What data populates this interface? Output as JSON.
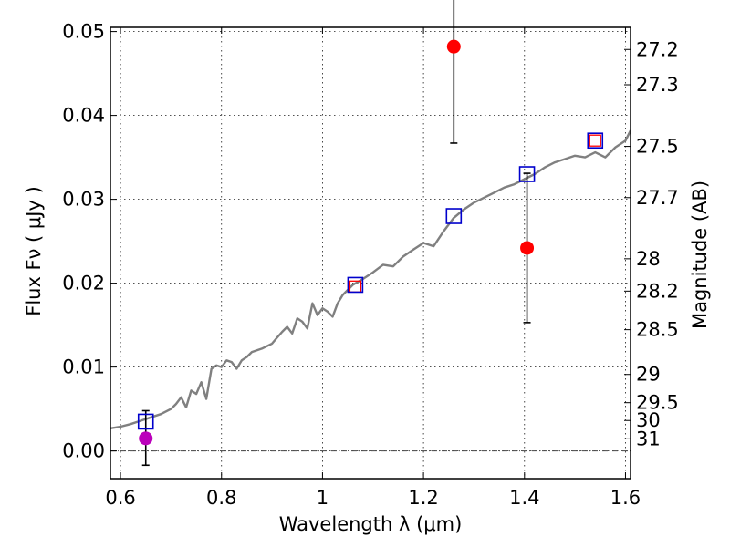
{
  "chart_data": {
    "type": "scatter",
    "xlabel": "Wavelength  λ (μm)",
    "ylabel": "Flux  Fν  ( μJy )",
    "ylabel_right": "Magnitude (AB)",
    "xlim": [
      0.58,
      1.61
    ],
    "ylim": [
      -0.0033,
      0.0505
    ],
    "grid": true,
    "x_ticks": [
      0.6,
      0.8,
      1.0,
      1.2,
      1.4,
      1.6
    ],
    "x_tick_labels": [
      "0.6",
      "0.8",
      "1",
      "1.2",
      "1.4",
      "1.6"
    ],
    "y_ticks": [
      0.0,
      0.01,
      0.02,
      0.03,
      0.04,
      0.05
    ],
    "y_tick_labels": [
      "0.00",
      "0.01",
      "0.02",
      "0.03",
      "0.04",
      "0.05"
    ],
    "right_ticks": [
      {
        "mag": 27.2,
        "label": "27.2"
      },
      {
        "mag": 27.3,
        "label": "27.3"
      },
      {
        "mag": 27.5,
        "label": "27.5"
      },
      {
        "mag": 27.7,
        "label": "27.7"
      },
      {
        "mag": 28,
        "label": "28"
      },
      {
        "mag": 28.2,
        "label": "28.2"
      },
      {
        "mag": 28.5,
        "label": "28.5"
      },
      {
        "mag": 29,
        "label": "29"
      },
      {
        "mag": 29.5,
        "label": "29.5"
      },
      {
        "mag": 30,
        "label": "30"
      },
      {
        "mag": 31,
        "label": "31"
      }
    ],
    "spectrum": {
      "color": "#808080",
      "x": [
        0.58,
        0.6,
        0.62,
        0.64,
        0.66,
        0.68,
        0.7,
        0.71,
        0.72,
        0.73,
        0.74,
        0.75,
        0.76,
        0.77,
        0.78,
        0.79,
        0.8,
        0.81,
        0.82,
        0.83,
        0.84,
        0.85,
        0.86,
        0.88,
        0.9,
        0.91,
        0.92,
        0.93,
        0.94,
        0.95,
        0.96,
        0.97,
        0.98,
        0.99,
        1.0,
        1.01,
        1.02,
        1.03,
        1.04,
        1.05,
        1.06,
        1.08,
        1.1,
        1.12,
        1.14,
        1.16,
        1.18,
        1.2,
        1.22,
        1.24,
        1.26,
        1.28,
        1.3,
        1.32,
        1.34,
        1.36,
        1.38,
        1.4,
        1.42,
        1.44,
        1.46,
        1.48,
        1.5,
        1.52,
        1.54,
        1.56,
        1.58,
        1.6,
        1.61
      ],
      "y": [
        0.0027,
        0.0029,
        0.0032,
        0.0036,
        0.004,
        0.0044,
        0.005,
        0.0056,
        0.0064,
        0.0052,
        0.0072,
        0.0068,
        0.0082,
        0.0062,
        0.0098,
        0.0102,
        0.01,
        0.0108,
        0.0106,
        0.0098,
        0.0108,
        0.0112,
        0.0118,
        0.0122,
        0.0128,
        0.0135,
        0.0142,
        0.0148,
        0.014,
        0.0158,
        0.0154,
        0.0146,
        0.0176,
        0.0162,
        0.017,
        0.0166,
        0.016,
        0.0176,
        0.0186,
        0.0192,
        0.0198,
        0.0205,
        0.0213,
        0.0222,
        0.022,
        0.0232,
        0.024,
        0.0248,
        0.0244,
        0.0262,
        0.0278,
        0.0288,
        0.0296,
        0.0302,
        0.0308,
        0.0314,
        0.0318,
        0.0324,
        0.033,
        0.0338,
        0.0344,
        0.0348,
        0.0352,
        0.035,
        0.0356,
        0.035,
        0.0362,
        0.037,
        0.0382
      ]
    },
    "model_points": {
      "marker": "open-square",
      "color": "#0000cc",
      "x": [
        0.65,
        1.065,
        1.26,
        1.405,
        1.54
      ],
      "y": [
        0.0035,
        0.0198,
        0.028,
        0.033,
        0.037
      ]
    },
    "inner_points": {
      "marker": "open-square",
      "color": "#ff0000",
      "x": [
        1.065,
        1.54
      ],
      "y": [
        0.0196,
        0.037
      ]
    },
    "observed_points": {
      "marker": "filled-circle",
      "color": "#ff0000",
      "x": [
        1.26,
        1.405
      ],
      "y": [
        0.0482,
        0.0242
      ],
      "yerr": [
        0.0115,
        0.0089
      ]
    },
    "faint_point": {
      "marker": "filled-circle",
      "color": "#bb00bb",
      "x": [
        0.65
      ],
      "y": [
        0.0015
      ],
      "yerr_low": [
        0.0032
      ],
      "yerr_high": [
        0.0033
      ]
    }
  }
}
